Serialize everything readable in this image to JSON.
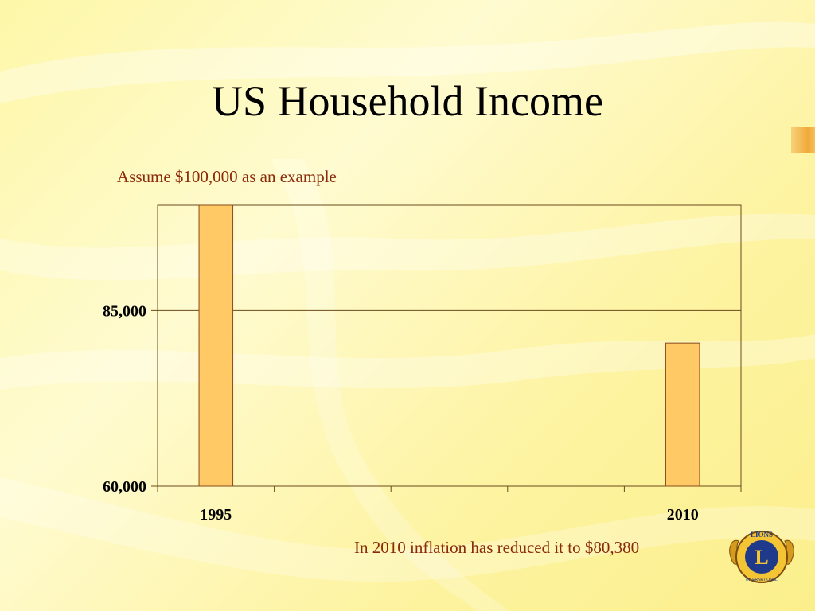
{
  "slide": {
    "title": "US Household Income",
    "subtitle": "Assume $100,000 as an example",
    "footnote": "In 2010 inflation has reduced it to $80,380"
  },
  "colors": {
    "bar_fill": "#ffc966",
    "bar_stroke": "#8b4a1a",
    "axis": "#6b4a1a",
    "text_accent": "#8a2a0a"
  },
  "chart_data": {
    "type": "bar",
    "title": "",
    "xlabel": "",
    "ylabel": "",
    "categories": [
      "1995",
      "",
      "",
      "",
      "2010"
    ],
    "values": [
      100000,
      null,
      null,
      null,
      80380
    ],
    "ylim": [
      60000,
      100000
    ],
    "yticks": [
      60000,
      85000
    ],
    "ytick_labels": [
      "60,000",
      "85,000"
    ],
    "grid": true
  },
  "logo": {
    "icon": "lions-club-emblem-icon",
    "text_top": "LIONS",
    "letter": "L",
    "text_bottom": "INTERNATIONAL"
  }
}
